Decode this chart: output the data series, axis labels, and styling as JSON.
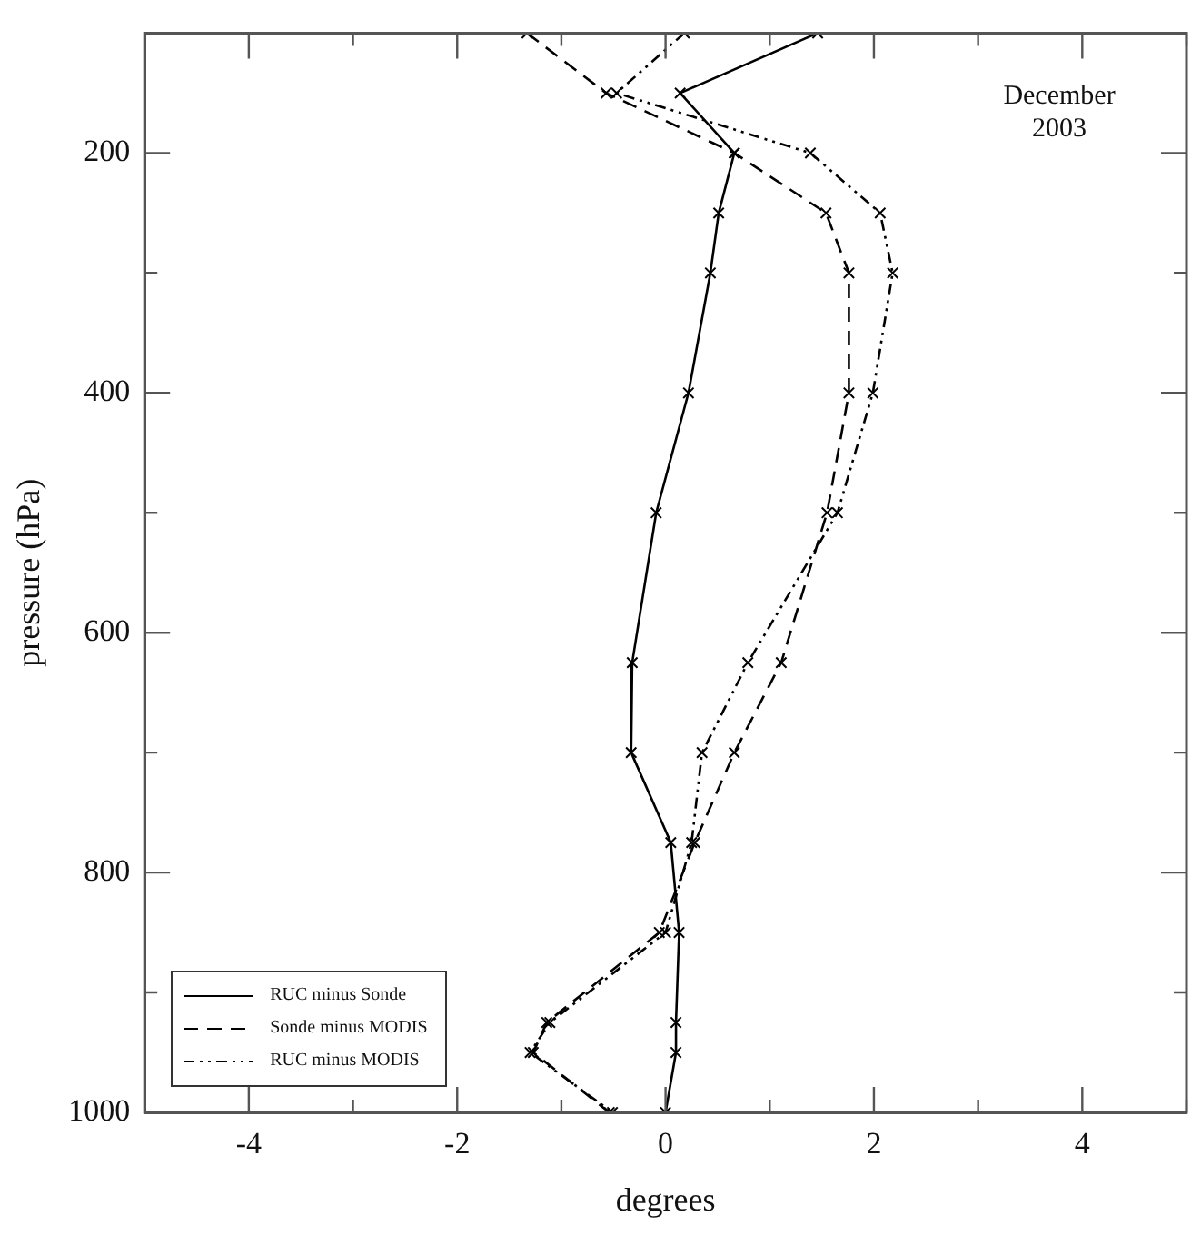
{
  "chart_data": {
    "type": "line",
    "orientation": "horizontal",
    "xlabel": "degrees",
    "ylabel": "pressure (hPa)",
    "annotations": [
      "December 2003"
    ],
    "x": [
      100,
      150,
      200,
      250,
      300,
      400,
      500,
      625,
      700,
      775,
      850,
      925,
      950,
      1000
    ],
    "series": [
      {
        "name": "RUC minus Sonde",
        "color": "#000000",
        "line_style": "solid",
        "values": [
          1.46,
          0.14,
          0.66,
          0.51,
          0.43,
          0.22,
          -0.09,
          -0.32,
          -0.33,
          0.05,
          0.13,
          0.1,
          0.1,
          0
        ]
      },
      {
        "name": "Sonde minus MODIS",
        "color": "#000000",
        "line_style": "dashed",
        "values": [
          -1.33,
          -0.57,
          0.66,
          1.54,
          1.76,
          1.76,
          1.55,
          1.11,
          0.66,
          0.28,
          -0.06,
          -1.14,
          -1.27,
          -0.54
        ]
      },
      {
        "name": "RUC minus MODIS",
        "color": "#000000",
        "line_style": "dotted",
        "values": [
          0.18,
          -0.47,
          1.39,
          2.06,
          2.18,
          1.99,
          1.65,
          0.79,
          0.35,
          0.25,
          0,
          -1.11,
          -1.3,
          -0.51
        ]
      }
    ],
    "xlim": [
      -5,
      5
    ],
    "xticks": [
      {
        "value": -5,
        "label": null
      },
      -4,
      {
        "value": -3,
        "label": null
      },
      -2,
      {
        "value": -1,
        "label": null
      },
      0,
      {
        "value": 1,
        "label": null
      },
      2,
      {
        "value": 3,
        "label": null
      },
      4,
      {
        "value": 5,
        "label": null
      }
    ],
    "ylim": [
      1000,
      100
    ],
    "yticks": [
      {
        "value": 100,
        "label": null
      },
      200,
      {
        "value": 300,
        "label": null
      },
      400,
      {
        "value": 500,
        "label": null
      },
      600,
      {
        "value": 700,
        "label": null
      },
      800,
      {
        "value": 900,
        "label": null
      },
      1000
    ],
    "marker": "cross",
    "grid": false,
    "legend": "bottom left"
  }
}
